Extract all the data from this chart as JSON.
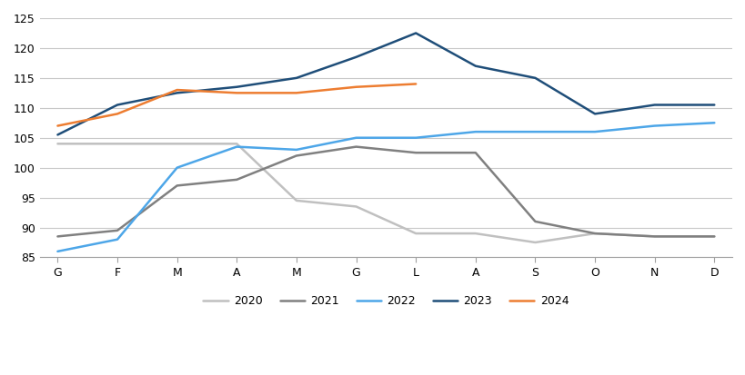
{
  "months": [
    "G",
    "F",
    "M",
    "A",
    "M",
    "G",
    "L",
    "A",
    "S",
    "O",
    "N",
    "D"
  ],
  "series": {
    "2020": [
      104.0,
      104.0,
      104.0,
      104.0,
      94.5,
      93.5,
      89.0,
      89.0,
      87.5,
      89.0,
      88.5,
      88.5
    ],
    "2021": [
      88.5,
      89.5,
      97.0,
      98.0,
      102.0,
      103.5,
      102.5,
      102.5,
      91.0,
      89.0,
      88.5,
      88.5
    ],
    "2022": [
      86.0,
      88.0,
      100.0,
      103.5,
      103.0,
      105.0,
      105.0,
      106.0,
      106.0,
      106.0,
      107.0,
      107.5
    ],
    "2023": [
      105.5,
      110.5,
      112.5,
      113.5,
      115.0,
      118.5,
      122.5,
      117.0,
      115.0,
      109.0,
      110.5,
      110.5
    ],
    "2024": [
      107.0,
      109.0,
      113.0,
      112.5,
      112.5,
      113.5,
      114.0,
      null,
      null,
      null,
      null,
      null
    ]
  },
  "colors": {
    "2020": "#c0c0c0",
    "2021": "#808080",
    "2022": "#4da6e8",
    "2023": "#1f4e79",
    "2024": "#ed7d31"
  },
  "ylim": [
    85,
    125
  ],
  "yticks": [
    85,
    90,
    95,
    100,
    105,
    110,
    115,
    120,
    125
  ],
  "background_color": "#ffffff",
  "grid_color": "#c8c8c8",
  "legend_order": [
    "2020",
    "2021",
    "2022",
    "2023",
    "2024"
  ]
}
